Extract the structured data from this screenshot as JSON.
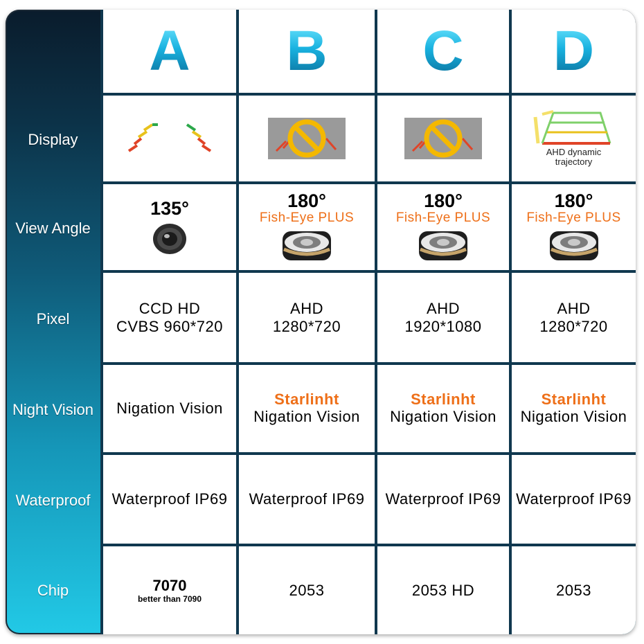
{
  "columns": [
    "A",
    "B",
    "C",
    "D"
  ],
  "rows": {
    "display": {
      "label": "Display",
      "d_caption": "AHD dynamic trajectory"
    },
    "view_angle": {
      "label": "View Angle",
      "values": [
        {
          "degrees": "135°",
          "note": ""
        },
        {
          "degrees": "180°",
          "note": "Fish-Eye  PLUS"
        },
        {
          "degrees": "180°",
          "note": "Fish-Eye  PLUS"
        },
        {
          "degrees": "180°",
          "note": "Fish-Eye  PLUS"
        }
      ]
    },
    "pixel": {
      "label": "Pixel",
      "values": [
        {
          "line1": "CCD HD",
          "line2": "CVBS 960*720"
        },
        {
          "line1": "AHD",
          "line2": "1280*720"
        },
        {
          "line1": "AHD",
          "line2": "1920*1080"
        },
        {
          "line1": "AHD",
          "line2": "1280*720"
        }
      ]
    },
    "night_vision": {
      "label": "Night Vision",
      "values": [
        {
          "highlight": "",
          "text": "Nigation Vision"
        },
        {
          "highlight": "Starlinht",
          "text": "Nigation Vision"
        },
        {
          "highlight": "Starlinht",
          "text": "Nigation Vision"
        },
        {
          "highlight": "Starlinht",
          "text": "Nigation Vision"
        }
      ]
    },
    "waterproof": {
      "label": "Waterproof",
      "values": [
        "Waterproof IP69",
        "Waterproof IP69",
        "Waterproof IP69",
        "Waterproof IP69"
      ]
    },
    "chip": {
      "label": "Chip",
      "values": [
        {
          "main": "7070",
          "sub": "better than 7090"
        },
        {
          "main": "2053",
          "sub": ""
        },
        {
          "main": "2053 HD",
          "sub": ""
        },
        {
          "main": "2053",
          "sub": ""
        }
      ]
    }
  },
  "icons": {
    "static_guide": "parking-guideline-icon",
    "prohibited": "no-sign-icon",
    "dynamic_guide": "dynamic-trajectory-icon",
    "lens_round": "camera-lens-icon",
    "lens_fisheye": "fisheye-lens-icon"
  },
  "colors": {
    "accent_letter": "#19b2e0",
    "orange": "#ee6f18",
    "frame_top": "#0a1c2c",
    "frame_bottom": "#22c9e6"
  }
}
